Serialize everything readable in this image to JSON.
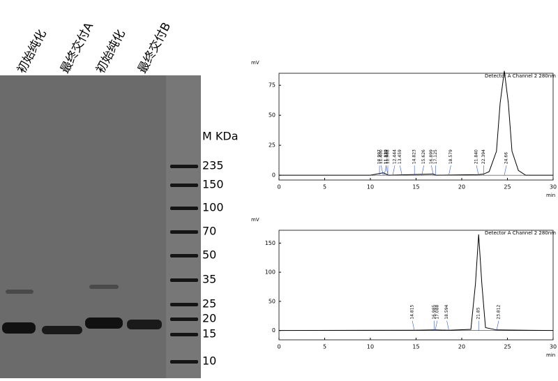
{
  "gel": {
    "lanes": [
      "初始纯化",
      "最终交付A",
      "初始纯化",
      "最终交付B"
    ],
    "marker_title": "M KDa",
    "marker": [
      235,
      150,
      100,
      70,
      50,
      35,
      25,
      20,
      15,
      10
    ]
  },
  "chart_data": [
    {
      "type": "line",
      "ylabel": "mV",
      "xlabel": "min",
      "detector": "Detector A Channel 2 280nm",
      "xlim": [
        0,
        30
      ],
      "xticks": [
        0,
        5,
        10,
        15,
        20,
        25,
        30
      ],
      "ylim": [
        -4,
        85
      ],
      "yticks": [
        0,
        25,
        50,
        75
      ],
      "x": [
        0,
        10,
        11.4,
        12,
        16.9,
        17.2,
        21.8,
        22.4,
        23,
        23.8,
        24.2,
        24.66,
        25.1,
        25.5,
        26.2,
        27,
        30
      ],
      "series": [
        {
          "color": "#000000",
          "values": [
            0,
            0,
            2,
            0,
            1,
            0,
            0.5,
            1,
            3,
            20,
            60,
            87,
            60,
            20,
            4,
            0,
            0
          ]
        }
      ],
      "peaks": [
        {
          "x": 11.4,
          "label": "11.400"
        },
        {
          "x": 10.997,
          "label": "10.997"
        },
        {
          "x": 11.517,
          "label": "11.517"
        },
        {
          "x": 11.93,
          "label": "11.930"
        },
        {
          "x": 11.908,
          "label": "11.908"
        },
        {
          "x": 12.444,
          "label": "12.444"
        },
        {
          "x": 13.459,
          "label": "13.459"
        },
        {
          "x": 14.823,
          "label": "14.823"
        },
        {
          "x": 15.626,
          "label": "15.626"
        },
        {
          "x": 16.899,
          "label": "16.899"
        },
        {
          "x": 17.125,
          "label": "17.125"
        },
        {
          "x": 18.579,
          "label": "18.579"
        },
        {
          "x": 21.84,
          "label": "21.840"
        },
        {
          "x": 22.394,
          "label": "22.394"
        },
        {
          "x": 24.66,
          "label": "24.66"
        }
      ]
    },
    {
      "type": "line",
      "ylabel": "mV",
      "xlabel": "min",
      "detector": "Detector A Channel 2 280nm",
      "xlim": [
        0,
        30
      ],
      "xticks": [
        0,
        5,
        10,
        15,
        20,
        25,
        30
      ],
      "ylim": [
        -16,
        172
      ],
      "yticks": [
        0,
        50,
        100,
        150
      ],
      "x": [
        0,
        14.8,
        17,
        18.6,
        21,
        21.5,
        21.85,
        22.2,
        22.6,
        23.8,
        30
      ],
      "series": [
        {
          "color": "#000000",
          "values": [
            0,
            0.5,
            1,
            0.5,
            2,
            80,
            165,
            80,
            5,
            1,
            0
          ]
        }
      ],
      "peaks": [
        {
          "x": 14.815,
          "label": "14.815"
        },
        {
          "x": 16.985,
          "label": "16.985"
        },
        {
          "x": 17.088,
          "label": "17.088"
        },
        {
          "x": 18.594,
          "label": "18.594"
        },
        {
          "x": 21.85,
          "label": "21.85"
        },
        {
          "x": 23.812,
          "label": "23.812"
        }
      ]
    }
  ]
}
